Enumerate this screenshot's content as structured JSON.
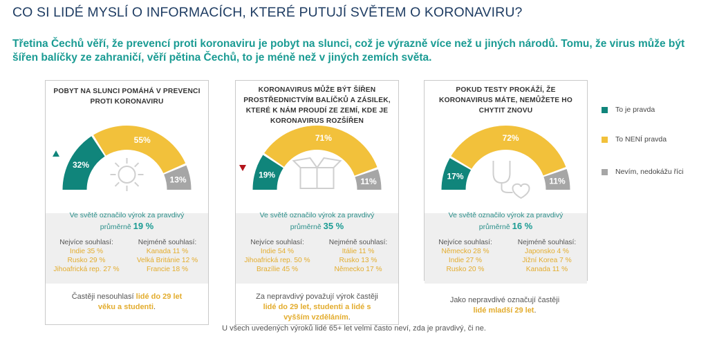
{
  "title": "CO SI LIDÉ MYSLÍ O INFORMACÍCH, KTERÉ PUTUJÍ SVĚTEM O KORONAVIRU?",
  "subtitle": "Třetina Čechů věří, že prevencí proti koronaviru je pobyt na slunci, což je výrazně více než u jiných národů. Tomu, že virus může být šířen balíčky ze zahraničí, věří pětina Čechů, to je méně než v jiných zemích světa.",
  "colors": {
    "true": "#10857b",
    "false": "#f2c13b",
    "dontknow": "#a6a6a6",
    "accent": "#1a9b93",
    "highlight": "#e3ac2d"
  },
  "legend": [
    {
      "label": "To je pravda",
      "color": "#10857b"
    },
    {
      "label": "To NENÍ pravda",
      "color": "#f2c13b"
    },
    {
      "label": "Nevím, nedokážu říci",
      "color": "#a6a6a6"
    }
  ],
  "chart_data": [
    {
      "type": "gauge",
      "title": "POBYT NA SLUNCI POMÁHÁ V PREVENCI PROTI KORONAVIRU",
      "icon": "sun-icon",
      "marker": "up",
      "series": [
        {
          "name": "To je pravda",
          "value": 32,
          "label": "32%"
        },
        {
          "name": "To NENÍ pravda",
          "value": 55,
          "label": "55%"
        },
        {
          "name": "Nevím, nedokážu říci",
          "value": 13,
          "label": "13%"
        }
      ],
      "world_text": "Ve světě označilo výrok za pravdivý",
      "world_avg_prefix": "průměrně",
      "world_avg": "19 %",
      "agree_header": "Nejvíce souhlasí:",
      "agree": [
        "Indie 35 %",
        "Rusko 29 %",
        "Jihoafrická rep. 27 %"
      ],
      "disagree_header": "Nejméně souhlasí:",
      "disagree": [
        "Kanada 11 %",
        "Velká Británie 12 %",
        "Francie 18 %"
      ],
      "note_plain": "Častěji nesouhlasí ",
      "note_highlight": "lidé do 29 let věku a studenti",
      "note_end": "."
    },
    {
      "type": "gauge",
      "title": "KORONAVIRUS MŮŽE BÝT ŠÍŘEN PROSTŘEDNICTVÍM BALÍČKŮ A ZÁSILEK, KTERÉ K NÁM PROUDÍ ZE ZEMÍ, KDE JE KORONAVIRUS ROZŠÍŘEN",
      "icon": "package-icon",
      "marker": "down",
      "series": [
        {
          "name": "To je pravda",
          "value": 19,
          "label": "19%"
        },
        {
          "name": "To NENÍ pravda",
          "value": 71,
          "label": "71%"
        },
        {
          "name": "Nevím, nedokážu říci",
          "value": 11,
          "label": "11%"
        }
      ],
      "world_text": "Ve světě označilo výrok za pravdivý",
      "world_avg_prefix": "průměrně",
      "world_avg": "35 %",
      "agree_header": "Nejvíce souhlasí:",
      "agree": [
        "Indie 54 %",
        "Jihoafrická rep. 50 %",
        "Brazílie 45 %"
      ],
      "disagree_header": "Nejméně souhlasí:",
      "disagree": [
        "Itálie 11 %",
        "Rusko 13 %",
        "Německo 17 %"
      ],
      "note_plain": "Za nepravdivý považují výrok častěji ",
      "note_highlight": "lidé do 29 let, studenti a lidé s vyšším vzděláním",
      "note_end": "."
    },
    {
      "type": "gauge",
      "title": "POKUD TESTY PROKÁŽÍ, ŽE KORONAVIRUS MÁTE, NEMŮŽETE HO CHYTIT ZNOVU",
      "icon": "stethoscope-icon",
      "marker": "none",
      "series": [
        {
          "name": "To je pravda",
          "value": 17,
          "label": "17%"
        },
        {
          "name": "To NENÍ pravda",
          "value": 72,
          "label": "72%"
        },
        {
          "name": "Nevím, nedokážu říci",
          "value": 11,
          "label": "11%"
        }
      ],
      "world_text": "Ve světě označilo výrok za pravdivý",
      "world_avg_prefix": "průměrně",
      "world_avg": "16 %",
      "agree_header": "Nejvíce souhlasí:",
      "agree": [
        "Německo 28 %",
        "Indie 27 %",
        "Rusko 20 %"
      ],
      "disagree_header": "Nejméně souhlasí:",
      "disagree": [
        "Japonsko 4 %",
        "Jižní Korea 7 %",
        "Kanada 11 %"
      ],
      "note_plain": "Jako nepravdivé označují častěji ",
      "note_highlight": "lidé mladší 29 let",
      "note_end": "."
    }
  ],
  "footer": "U všech uvedených výroků lidé 65+ let velmi často neví, zda je pravdivý, či ne."
}
